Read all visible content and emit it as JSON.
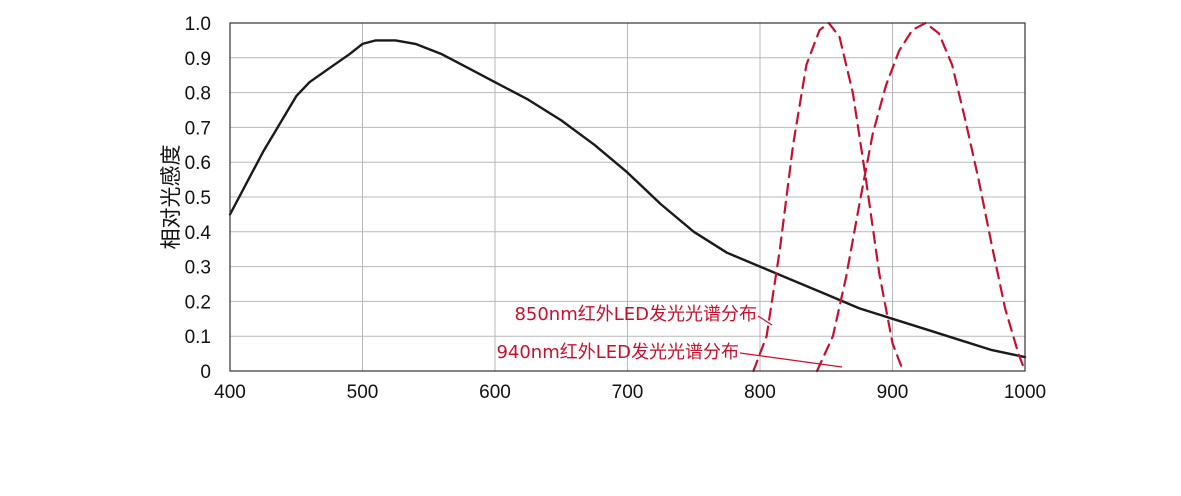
{
  "chart_data": {
    "type": "line",
    "title": "",
    "xlabel": "",
    "ylabel": "相对光感度",
    "xlim": [
      400,
      1000
    ],
    "ylim": [
      0,
      1.0
    ],
    "x_ticks": [
      "400",
      "500",
      "600",
      "700",
      "800",
      "900",
      "1000"
    ],
    "y_ticks": [
      "0",
      "0.1",
      "0.2",
      "0.3",
      "0.4",
      "0.5",
      "0.6",
      "0.7",
      "0.8",
      "0.9",
      "1.0"
    ],
    "grid": true,
    "series": [
      {
        "name": "",
        "style": "solid",
        "color": "#1a1a1a",
        "x": [
          400,
          425,
          450,
          460,
          475,
          490,
          500,
          510,
          525,
          540,
          560,
          580,
          600,
          625,
          650,
          675,
          700,
          725,
          750,
          775,
          800,
          825,
          850,
          875,
          900,
          925,
          950,
          975,
          1000
        ],
        "y": [
          0.45,
          0.63,
          0.79,
          0.83,
          0.87,
          0.91,
          0.94,
          0.95,
          0.95,
          0.94,
          0.91,
          0.87,
          0.83,
          0.78,
          0.72,
          0.65,
          0.57,
          0.48,
          0.4,
          0.34,
          0.3,
          0.26,
          0.22,
          0.18,
          0.15,
          0.12,
          0.09,
          0.06,
          0.04
        ]
      },
      {
        "name": "850nm红外LED发光光谱分布",
        "style": "dashed",
        "color": "#c8102e",
        "x": [
          795,
          805,
          815,
          825,
          835,
          845,
          852,
          860,
          870,
          880,
          890,
          900,
          908
        ],
        "y": [
          0.0,
          0.1,
          0.35,
          0.65,
          0.88,
          0.98,
          1.0,
          0.96,
          0.8,
          0.55,
          0.28,
          0.08,
          0.0
        ]
      },
      {
        "name": "940nm红外LED发光光谱分布",
        "style": "dashed",
        "color": "#c8102e",
        "x": [
          843,
          855,
          865,
          875,
          885,
          895,
          905,
          915,
          925,
          935,
          945,
          955,
          965,
          975,
          985,
          995,
          1000
        ],
        "y": [
          0.0,
          0.1,
          0.27,
          0.48,
          0.68,
          0.82,
          0.92,
          0.98,
          1.0,
          0.97,
          0.88,
          0.72,
          0.55,
          0.36,
          0.18,
          0.05,
          0.0
        ]
      }
    ],
    "annotations": [
      {
        "text": "850nm红外LED发光光谱分布",
        "color": "#c8102e"
      },
      {
        "text": "940nm红外LED发光光谱分布",
        "color": "#c8102e"
      }
    ]
  }
}
